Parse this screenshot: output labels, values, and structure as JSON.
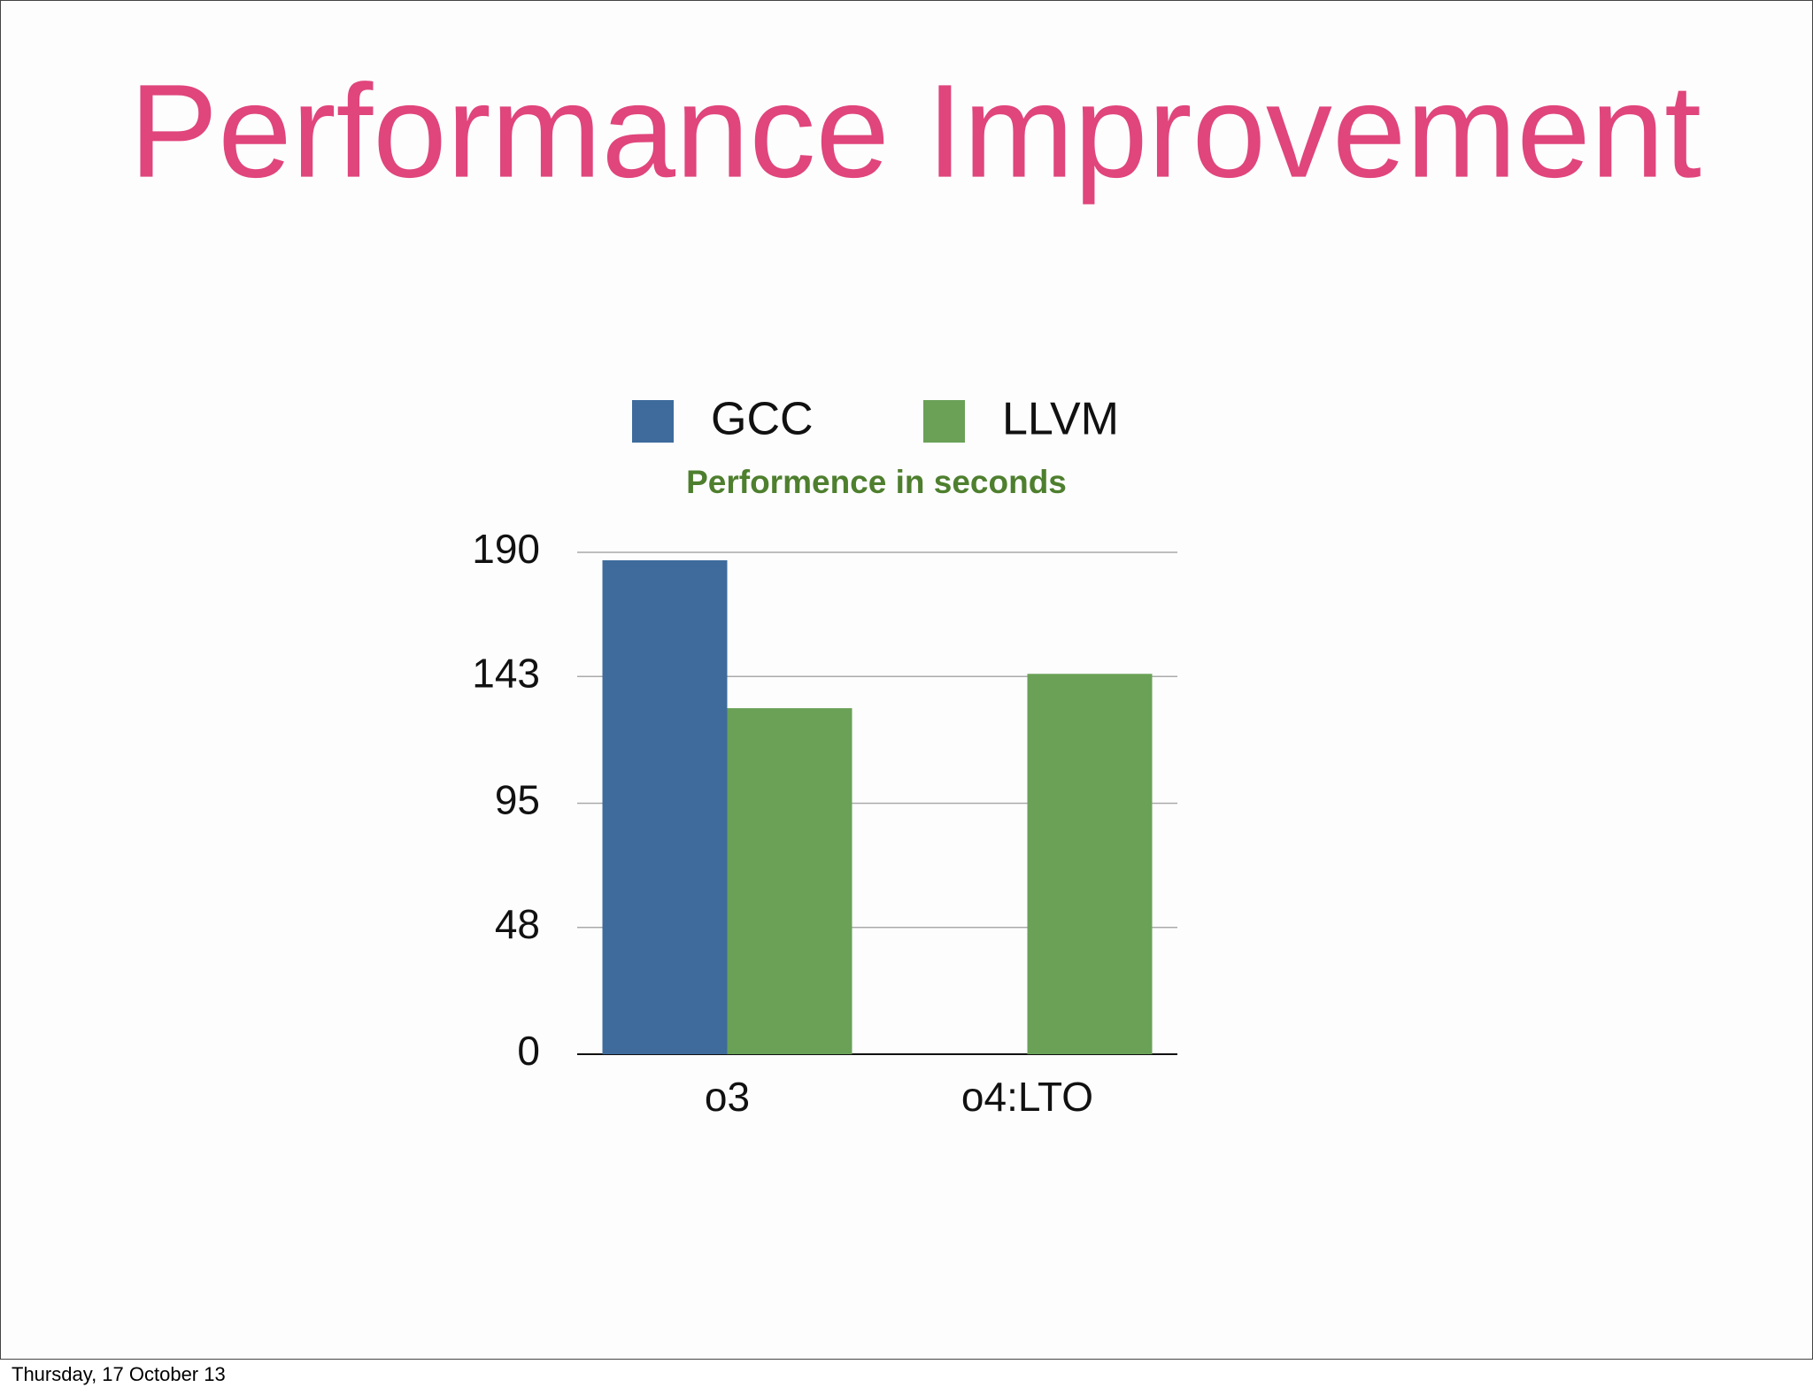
{
  "chart_data": {
    "type": "bar",
    "title": "Performance Improvement",
    "subtitle": "Performence in seconds",
    "categories": [
      "o3",
      "o4:LTO"
    ],
    "series": [
      {
        "name": "GCC",
        "color": "#3e6b9c",
        "values": [
          187,
          null
        ]
      },
      {
        "name": "LLVM",
        "color": "#6aa157",
        "values": [
          131,
          144
        ]
      }
    ],
    "ylim": [
      0,
      190
    ],
    "yticks": [
      0,
      48,
      95,
      143,
      190
    ],
    "grid": true,
    "legend": "top"
  },
  "footer": "Thursday, 17 October 13"
}
